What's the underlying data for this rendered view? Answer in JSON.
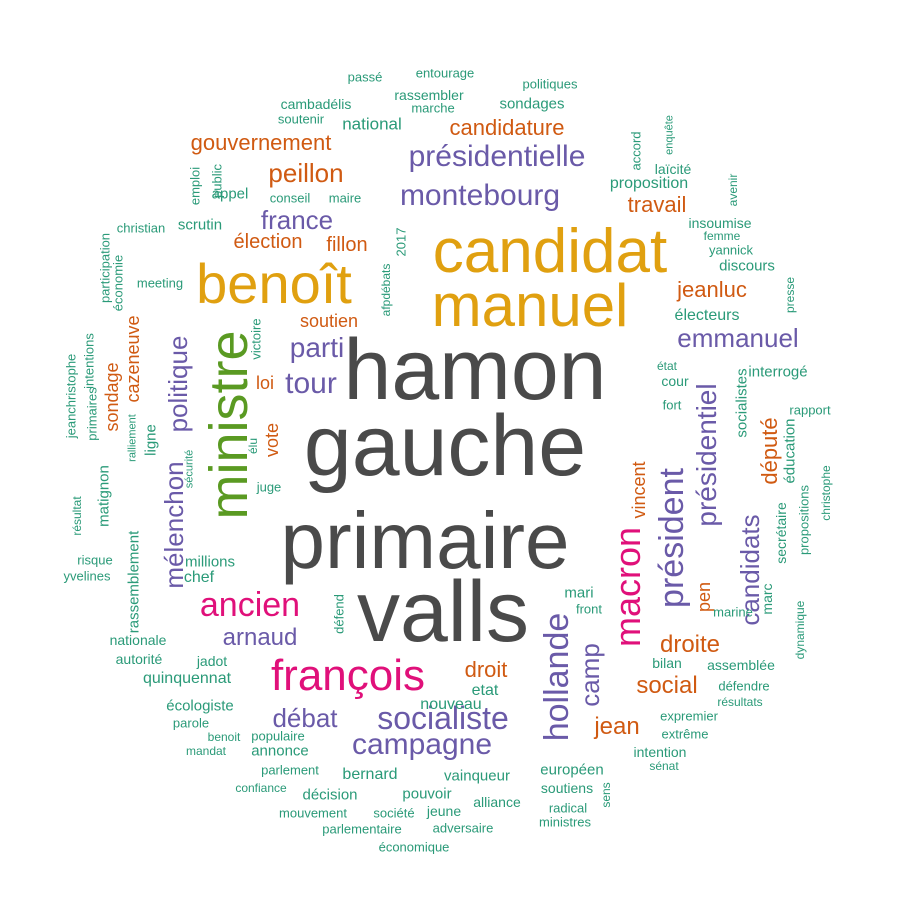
{
  "colors": {
    "dark": "#4a4a4a",
    "gold": "#e0a010",
    "green": "#5a9a22",
    "pink": "#e0107a",
    "purple": "#6a5aa8",
    "orange": "#d05a12",
    "teal": "#2a9a78"
  },
  "words": [
    {
      "text": "hamon",
      "color": "dark",
      "size": 86
    },
    {
      "text": "gauche",
      "color": "dark",
      "size": 86
    },
    {
      "text": "primaire",
      "color": "dark",
      "size": 80
    },
    {
      "text": "valls",
      "color": "dark",
      "size": 86
    },
    {
      "text": "candidat",
      "color": "gold",
      "size": 62
    },
    {
      "text": "manuel",
      "color": "gold",
      "size": 60
    },
    {
      "text": "benoît",
      "color": "gold",
      "size": 56
    },
    {
      "text": "ministre",
      "color": "green",
      "size": 54
    },
    {
      "text": "françois",
      "color": "pink",
      "size": 44
    },
    {
      "text": "macron",
      "color": "pink",
      "size": 36
    },
    {
      "text": "ancien",
      "color": "pink",
      "size": 34
    },
    {
      "text": "hollande",
      "color": "purple",
      "size": 34
    },
    {
      "text": "président",
      "color": "purple",
      "size": 34
    },
    {
      "text": "socialiste",
      "color": "purple",
      "size": 32
    },
    {
      "text": "campagne",
      "color": "purple",
      "size": 30
    },
    {
      "text": "présidentielle",
      "color": "purple",
      "size": 30
    },
    {
      "text": "montebourg",
      "color": "purple",
      "size": 30
    },
    {
      "text": "présidentiel",
      "color": "purple",
      "size": 28
    },
    {
      "text": "tour",
      "color": "purple",
      "size": 30
    },
    {
      "text": "parti",
      "color": "purple",
      "size": 28
    },
    {
      "text": "politique",
      "color": "purple",
      "size": 26
    },
    {
      "text": "mélenchon",
      "color": "purple",
      "size": 26
    },
    {
      "text": "candidats",
      "color": "purple",
      "size": 26
    },
    {
      "text": "emmanuel",
      "color": "purple",
      "size": 26
    },
    {
      "text": "france",
      "color": "purple",
      "size": 26
    },
    {
      "text": "débat",
      "color": "purple",
      "size": 26
    },
    {
      "text": "arnaud",
      "color": "purple",
      "size": 24
    },
    {
      "text": "camp",
      "color": "purple",
      "size": 26
    },
    {
      "text": "peillon",
      "color": "orange",
      "size": 26
    },
    {
      "text": "gouvernement",
      "color": "orange",
      "size": 22
    },
    {
      "text": "candidature",
      "color": "orange",
      "size": 22
    },
    {
      "text": "jeanluc",
      "color": "orange",
      "size": 22
    },
    {
      "text": "travail",
      "color": "orange",
      "size": 22
    },
    {
      "text": "élection",
      "color": "orange",
      "size": 20
    },
    {
      "text": "fillon",
      "color": "orange",
      "size": 20
    },
    {
      "text": "soutien",
      "color": "orange",
      "size": 18
    },
    {
      "text": "droite",
      "color": "orange",
      "size": 24
    },
    {
      "text": "droit",
      "color": "orange",
      "size": 22
    },
    {
      "text": "social",
      "color": "orange",
      "size": 24
    },
    {
      "text": "jean",
      "color": "orange",
      "size": 24
    },
    {
      "text": "député",
      "color": "orange",
      "size": 22
    },
    {
      "text": "vincent",
      "color": "orange",
      "size": 18
    },
    {
      "text": "pen",
      "color": "orange",
      "size": 18
    },
    {
      "text": "cazeneuve",
      "color": "orange",
      "size": 18
    },
    {
      "text": "sondage",
      "color": "orange",
      "size": 18
    },
    {
      "text": "loi",
      "color": "orange",
      "size": 18
    },
    {
      "text": "vote",
      "color": "orange",
      "size": 18
    },
    {
      "text": "passé",
      "color": "teal",
      "size": 13
    },
    {
      "text": "entourage",
      "color": "teal",
      "size": 13
    },
    {
      "text": "politiques",
      "color": "teal",
      "size": 13
    },
    {
      "text": "rassembler",
      "color": "teal",
      "size": 14
    },
    {
      "text": "cambadélis",
      "color": "teal",
      "size": 14
    },
    {
      "text": "marche",
      "color": "teal",
      "size": 13
    },
    {
      "text": "sondages",
      "color": "teal",
      "size": 15
    },
    {
      "text": "soutenir",
      "color": "teal",
      "size": 13
    },
    {
      "text": "national",
      "color": "teal",
      "size": 17
    },
    {
      "text": "accord",
      "color": "teal",
      "size": 13
    },
    {
      "text": "enquête",
      "color": "teal",
      "size": 11
    },
    {
      "text": "laïcité",
      "color": "teal",
      "size": 14
    },
    {
      "text": "emploi",
      "color": "teal",
      "size": 13
    },
    {
      "text": "public",
      "color": "teal",
      "size": 13
    },
    {
      "text": "proposition",
      "color": "teal",
      "size": 16
    },
    {
      "text": "appel",
      "color": "teal",
      "size": 15
    },
    {
      "text": "conseil",
      "color": "teal",
      "size": 13
    },
    {
      "text": "maire",
      "color": "teal",
      "size": 13
    },
    {
      "text": "christian",
      "color": "teal",
      "size": 13
    },
    {
      "text": "scrutin",
      "color": "teal",
      "size": 15
    },
    {
      "text": "avenir",
      "color": "teal",
      "size": 12
    },
    {
      "text": "insoumise",
      "color": "teal",
      "size": 14
    },
    {
      "text": "femme",
      "color": "teal",
      "size": 12
    },
    {
      "text": "yannick",
      "color": "teal",
      "size": 13
    },
    {
      "text": "discours",
      "color": "teal",
      "size": 15
    },
    {
      "text": "2017",
      "color": "teal",
      "size": 13
    },
    {
      "text": "participation",
      "color": "teal",
      "size": 13
    },
    {
      "text": "économie",
      "color": "teal",
      "size": 13
    },
    {
      "text": "meeting",
      "color": "teal",
      "size": 13
    },
    {
      "text": "afpdébats",
      "color": "teal",
      "size": 12
    },
    {
      "text": "presse",
      "color": "teal",
      "size": 12
    },
    {
      "text": "électeurs",
      "color": "teal",
      "size": 16
    },
    {
      "text": "jeanchristophe",
      "color": "teal",
      "size": 13
    },
    {
      "text": "intentions",
      "color": "teal",
      "size": 13
    },
    {
      "text": "primaires",
      "color": "teal",
      "size": 13
    },
    {
      "text": "victoire",
      "color": "teal",
      "size": 13
    },
    {
      "text": "état",
      "color": "teal",
      "size": 12
    },
    {
      "text": "cour",
      "color": "teal",
      "size": 14
    },
    {
      "text": "interrogé",
      "color": "teal",
      "size": 15
    },
    {
      "text": "fort",
      "color": "teal",
      "size": 13
    },
    {
      "text": "rapport",
      "color": "teal",
      "size": 13
    },
    {
      "text": "socialistes",
      "color": "teal",
      "size": 15
    },
    {
      "text": "ralliement",
      "color": "teal",
      "size": 11
    },
    {
      "text": "ligne",
      "color": "teal",
      "size": 15
    },
    {
      "text": "élu",
      "color": "teal",
      "size": 12
    },
    {
      "text": "éducation",
      "color": "teal",
      "size": 15
    },
    {
      "text": "sécurité",
      "color": "teal",
      "size": 11
    },
    {
      "text": "juge",
      "color": "teal",
      "size": 13
    },
    {
      "text": "christophe",
      "color": "teal",
      "size": 12
    },
    {
      "text": "résultat",
      "color": "teal",
      "size": 12
    },
    {
      "text": "matignon",
      "color": "teal",
      "size": 15
    },
    {
      "text": "propositions",
      "color": "teal",
      "size": 13
    },
    {
      "text": "secrétaire",
      "color": "teal",
      "size": 14
    },
    {
      "text": "millions",
      "color": "teal",
      "size": 15
    },
    {
      "text": "chef",
      "color": "teal",
      "size": 16
    },
    {
      "text": "risque",
      "color": "teal",
      "size": 13
    },
    {
      "text": "yvelines",
      "color": "teal",
      "size": 13
    },
    {
      "text": "rassemblement",
      "color": "teal",
      "size": 15
    },
    {
      "text": "défend",
      "color": "teal",
      "size": 13
    },
    {
      "text": "mari",
      "color": "teal",
      "size": 15
    },
    {
      "text": "front",
      "color": "teal",
      "size": 13
    },
    {
      "text": "marc",
      "color": "teal",
      "size": 14
    },
    {
      "text": "marine",
      "color": "teal",
      "size": 13
    },
    {
      "text": "dynamique",
      "color": "teal",
      "size": 12
    },
    {
      "text": "nationale",
      "color": "teal",
      "size": 14
    },
    {
      "text": "autorité",
      "color": "teal",
      "size": 14
    },
    {
      "text": "jadot",
      "color": "teal",
      "size": 14
    },
    {
      "text": "bilan",
      "color": "teal",
      "size": 14
    },
    {
      "text": "assemblée",
      "color": "teal",
      "size": 14
    },
    {
      "text": "quinquennat",
      "color": "teal",
      "size": 16
    },
    {
      "text": "etat",
      "color": "teal",
      "size": 16
    },
    {
      "text": "défendre",
      "color": "teal",
      "size": 13
    },
    {
      "text": "écologiste",
      "color": "teal",
      "size": 15
    },
    {
      "text": "nouveau",
      "color": "teal",
      "size": 16
    },
    {
      "text": "résultats",
      "color": "teal",
      "size": 12
    },
    {
      "text": "parole",
      "color": "teal",
      "size": 13
    },
    {
      "text": "expremier",
      "color": "teal",
      "size": 13
    },
    {
      "text": "populaire",
      "color": "teal",
      "size": 13
    },
    {
      "text": "benoit",
      "color": "teal",
      "size": 12
    },
    {
      "text": "extrême",
      "color": "teal",
      "size": 13
    },
    {
      "text": "mandat",
      "color": "teal",
      "size": 12
    },
    {
      "text": "annonce",
      "color": "teal",
      "size": 15
    },
    {
      "text": "intention",
      "color": "teal",
      "size": 14
    },
    {
      "text": "sénat",
      "color": "teal",
      "size": 12
    },
    {
      "text": "parlement",
      "color": "teal",
      "size": 13
    },
    {
      "text": "bernard",
      "color": "teal",
      "size": 16
    },
    {
      "text": "vainqueur",
      "color": "teal",
      "size": 15
    },
    {
      "text": "européen",
      "color": "teal",
      "size": 15
    },
    {
      "text": "confiance",
      "color": "teal",
      "size": 12
    },
    {
      "text": "décision",
      "color": "teal",
      "size": 15
    },
    {
      "text": "pouvoir",
      "color": "teal",
      "size": 15
    },
    {
      "text": "soutiens",
      "color": "teal",
      "size": 14
    },
    {
      "text": "sens",
      "color": "teal",
      "size": 12
    },
    {
      "text": "alliance",
      "color": "teal",
      "size": 14
    },
    {
      "text": "radical",
      "color": "teal",
      "size": 13
    },
    {
      "text": "jeune",
      "color": "teal",
      "size": 14
    },
    {
      "text": "mouvement",
      "color": "teal",
      "size": 13
    },
    {
      "text": "société",
      "color": "teal",
      "size": 13
    },
    {
      "text": "ministres",
      "color": "teal",
      "size": 13
    },
    {
      "text": "parlementaire",
      "color": "teal",
      "size": 13
    },
    {
      "text": "adversaire",
      "color": "teal",
      "size": 13
    },
    {
      "text": "économique",
      "color": "teal",
      "size": 13
    }
  ]
}
